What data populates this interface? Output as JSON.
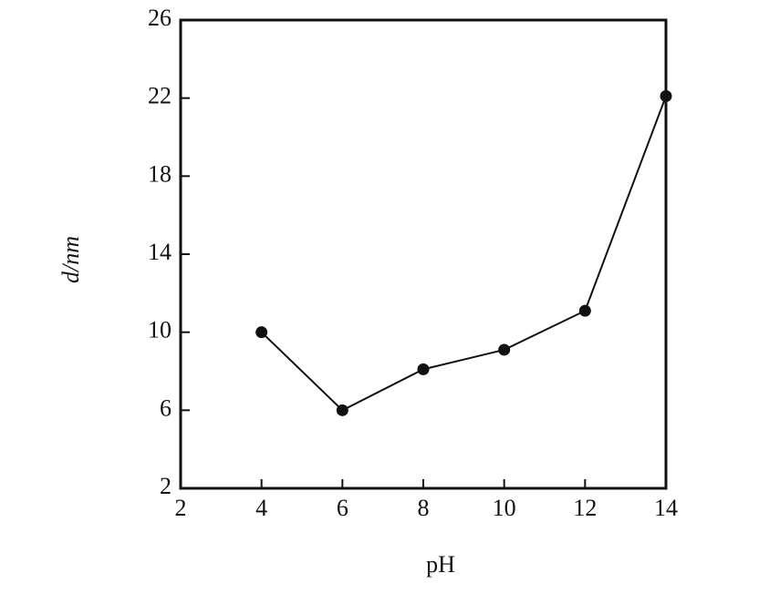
{
  "chart_data": {
    "type": "line",
    "x_label": "pH",
    "y_label": "d/nm",
    "x": [
      4,
      6,
      8,
      10,
      12,
      14
    ],
    "series": [
      {
        "color": "#111111",
        "values": [
          10,
          6,
          8.1,
          9.1,
          11.1,
          22.1
        ]
      }
    ],
    "xlim": [
      2,
      14
    ],
    "xticks": [
      2,
      4,
      6,
      8,
      10,
      12,
      14
    ],
    "ylim": [
      2,
      26
    ],
    "yticks": [
      2,
      6,
      10,
      14,
      18,
      22,
      26
    ],
    "grid": false
  }
}
